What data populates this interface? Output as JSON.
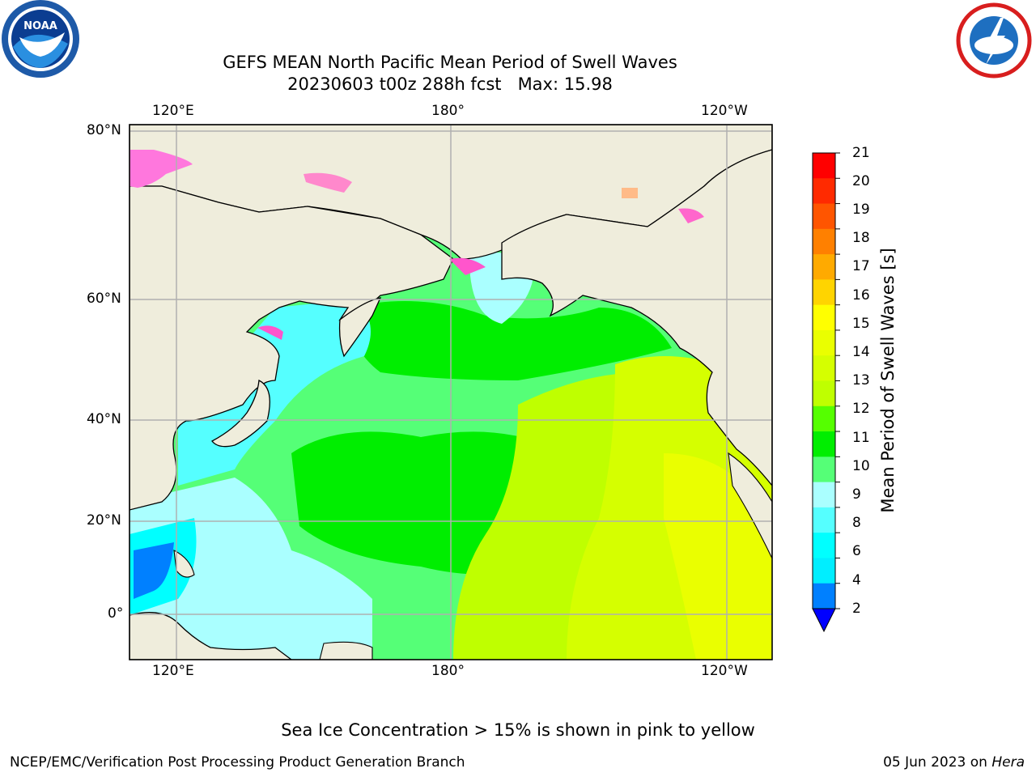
{
  "title": {
    "line1": "GEFS MEAN North Pacific Mean Period of Swell Waves",
    "line2": "20230603 t00z 288h fcst   Max: 15.98"
  },
  "logos": {
    "left": "NOAA",
    "right": "NATIONAL WEATHER SERVICE"
  },
  "map": {
    "lon_labels": [
      "120°E",
      "180°",
      "120°W"
    ],
    "lat_labels": [
      "80°N",
      "60°N",
      "40°N",
      "20°N",
      "0°"
    ],
    "colors": {
      "land": "#efeddc",
      "grid": "#b0b0b0"
    }
  },
  "colorbar": {
    "label": "Mean Period of Swell Waves [s]",
    "ticks": [
      "21",
      "20",
      "19",
      "18",
      "17",
      "16",
      "15",
      "14",
      "13",
      "12",
      "11",
      "10",
      "9",
      "8",
      "6",
      "4",
      "2"
    ],
    "colors": [
      "#ff0000",
      "#ff2a00",
      "#ff5500",
      "#ff8000",
      "#ffaa00",
      "#ffd400",
      "#ffff00",
      "#eaff00",
      "#d5ff00",
      "#bfff00",
      "#55ff00",
      "#00ee00",
      "#55ff77",
      "#aaffff",
      "#55ffff",
      "#00ffff",
      "#00eeff",
      "#0080ff",
      "#0000ff"
    ]
  },
  "note": "Sea Ice Concentration > 15% is shown in pink to yellow",
  "footer": {
    "left": "NCEP/EMC/Verification Post Processing Product Generation Branch",
    "date": "05 Jun 2023 on ",
    "machine": "Hera"
  }
}
